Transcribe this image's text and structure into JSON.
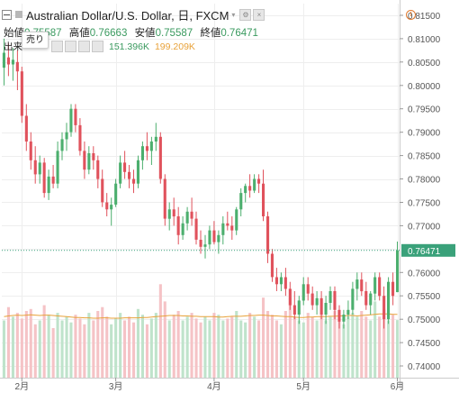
{
  "header": {
    "symbol_title": "Australian Dollar/U.S. Dollar, 日, FXCM",
    "ohlc": [
      {
        "label": "始値",
        "value": "0.75587"
      },
      {
        "label": "高値",
        "value": "0.76663"
      },
      {
        "label": "安値",
        "value": "0.75587"
      },
      {
        "label": "終値",
        "value": "0.76471"
      }
    ],
    "sell_label": "売り",
    "volume_label": "出来",
    "volume_values": [
      "151.396K",
      "199.209K"
    ],
    "alert_symbol": "!"
  },
  "colors": {
    "up": "#4caf6e",
    "down": "#e0525c",
    "up_volume": "#bfe3cb",
    "down_volume": "#f5c3c6",
    "volume_ma": "#e8a23a",
    "last_price": "#3aa17a",
    "grid": "#eeeeee",
    "axis": "#555555"
  },
  "chart_data": {
    "type": "candlestick",
    "title": "Australian Dollar/U.S. Dollar, 日, FXCM",
    "last_price": "0.76471",
    "ylim": [
      0.7375,
      0.8175
    ],
    "y_ticks": [
      "0.81500",
      "0.81000",
      "0.80500",
      "0.80000",
      "0.79500",
      "0.79000",
      "0.78500",
      "0.78000",
      "0.77500",
      "0.77000",
      "0.76500",
      "0.76000",
      "0.75500",
      "0.75000",
      "0.74500",
      "0.74000"
    ],
    "x_ticks": [
      {
        "label": "2月",
        "index": 4
      },
      {
        "label": "3月",
        "index": 25
      },
      {
        "label": "4月",
        "index": 47
      },
      {
        "label": "5月",
        "index": 67
      },
      {
        "label": "6月",
        "index": 88
      }
    ],
    "candles": [
      [
        0.8038,
        0.81,
        0.8,
        0.807
      ],
      [
        0.806,
        0.809,
        0.802,
        0.8045
      ],
      [
        0.8045,
        0.808,
        0.801,
        0.8055
      ],
      [
        0.805,
        0.8075,
        0.799,
        0.803
      ],
      [
        0.803,
        0.804,
        0.792,
        0.7935
      ],
      [
        0.7935,
        0.796,
        0.786,
        0.788
      ],
      [
        0.788,
        0.79,
        0.782,
        0.784
      ],
      [
        0.784,
        0.787,
        0.779,
        0.781
      ],
      [
        0.781,
        0.785,
        0.779,
        0.7835
      ],
      [
        0.7835,
        0.7845,
        0.776,
        0.777
      ],
      [
        0.777,
        0.782,
        0.7755,
        0.7805
      ],
      [
        0.7805,
        0.783,
        0.778,
        0.779
      ],
      [
        0.779,
        0.788,
        0.778,
        0.786
      ],
      [
        0.786,
        0.79,
        0.784,
        0.7885
      ],
      [
        0.7885,
        0.792,
        0.786,
        0.79
      ],
      [
        0.79,
        0.796,
        0.789,
        0.795
      ],
      [
        0.795,
        0.796,
        0.79,
        0.7915
      ],
      [
        0.7915,
        0.793,
        0.785,
        0.786
      ],
      [
        0.786,
        0.788,
        0.78,
        0.782
      ],
      [
        0.782,
        0.787,
        0.781,
        0.7855
      ],
      [
        0.7855,
        0.787,
        0.782,
        0.784
      ],
      [
        0.784,
        0.785,
        0.778,
        0.78
      ],
      [
        0.78,
        0.782,
        0.774,
        0.775
      ],
      [
        0.775,
        0.777,
        0.772,
        0.7735
      ],
      [
        0.7735,
        0.776,
        0.77,
        0.7745
      ],
      [
        0.7745,
        0.78,
        0.774,
        0.779
      ],
      [
        0.779,
        0.785,
        0.778,
        0.7835
      ],
      [
        0.7835,
        0.786,
        0.78,
        0.7815
      ],
      [
        0.7815,
        0.783,
        0.778,
        0.78
      ],
      [
        0.78,
        0.782,
        0.777,
        0.779
      ],
      [
        0.779,
        0.785,
        0.778,
        0.784
      ],
      [
        0.784,
        0.788,
        0.782,
        0.787
      ],
      [
        0.787,
        0.79,
        0.784,
        0.786
      ],
      [
        0.786,
        0.789,
        0.783,
        0.788
      ],
      [
        0.788,
        0.792,
        0.786,
        0.789
      ],
      [
        0.789,
        0.79,
        0.779,
        0.78
      ],
      [
        0.78,
        0.781,
        0.77,
        0.7715
      ],
      [
        0.7715,
        0.775,
        0.769,
        0.7735
      ],
      [
        0.7735,
        0.776,
        0.77,
        0.772
      ],
      [
        0.772,
        0.774,
        0.766,
        0.768
      ],
      [
        0.768,
        0.772,
        0.767,
        0.7705
      ],
      [
        0.7705,
        0.774,
        0.769,
        0.773
      ],
      [
        0.773,
        0.776,
        0.77,
        0.7715
      ],
      [
        0.7715,
        0.773,
        0.766,
        0.767
      ],
      [
        0.767,
        0.769,
        0.764,
        0.7655
      ],
      [
        0.7655,
        0.768,
        0.763,
        0.766
      ],
      [
        0.766,
        0.77,
        0.765,
        0.769
      ],
      [
        0.769,
        0.771,
        0.766,
        0.7665
      ],
      [
        0.7665,
        0.769,
        0.764,
        0.768
      ],
      [
        0.768,
        0.772,
        0.766,
        0.7705
      ],
      [
        0.7705,
        0.773,
        0.769,
        0.77
      ],
      [
        0.77,
        0.772,
        0.767,
        0.769
      ],
      [
        0.769,
        0.774,
        0.768,
        0.7735
      ],
      [
        0.7735,
        0.778,
        0.772,
        0.777
      ],
      [
        0.777,
        0.779,
        0.775,
        0.7785
      ],
      [
        0.7785,
        0.781,
        0.776,
        0.7775
      ],
      [
        0.7775,
        0.781,
        0.777,
        0.78
      ],
      [
        0.78,
        0.781,
        0.777,
        0.779
      ],
      [
        0.779,
        0.782,
        0.771,
        0.772
      ],
      [
        0.772,
        0.773,
        0.762,
        0.764
      ],
      [
        0.764,
        0.765,
        0.758,
        0.759
      ],
      [
        0.759,
        0.761,
        0.756,
        0.7575
      ],
      [
        0.7575,
        0.76,
        0.756,
        0.759
      ],
      [
        0.759,
        0.761,
        0.755,
        0.7565
      ],
      [
        0.7565,
        0.758,
        0.752,
        0.753
      ],
      [
        0.753,
        0.756,
        0.75,
        0.751
      ],
      [
        0.751,
        0.755,
        0.749,
        0.754
      ],
      [
        0.754,
        0.759,
        0.753,
        0.7575
      ],
      [
        0.7575,
        0.759,
        0.754,
        0.7555
      ],
      [
        0.7555,
        0.757,
        0.752,
        0.753
      ],
      [
        0.753,
        0.756,
        0.751,
        0.7545
      ],
      [
        0.7545,
        0.756,
        0.75,
        0.751
      ],
      [
        0.751,
        0.755,
        0.749,
        0.7535
      ],
      [
        0.7535,
        0.757,
        0.752,
        0.756
      ],
      [
        0.756,
        0.757,
        0.75,
        0.752
      ],
      [
        0.752,
        0.753,
        0.748,
        0.7495
      ],
      [
        0.7495,
        0.752,
        0.748,
        0.751
      ],
      [
        0.751,
        0.754,
        0.75,
        0.752
      ],
      [
        0.752,
        0.758,
        0.751,
        0.7565
      ],
      [
        0.7565,
        0.76,
        0.754,
        0.7585
      ],
      [
        0.7585,
        0.76,
        0.755,
        0.756
      ],
      [
        0.756,
        0.758,
        0.752,
        0.753
      ],
      [
        0.753,
        0.756,
        0.751,
        0.7555
      ],
      [
        0.7555,
        0.76,
        0.754,
        0.759
      ],
      [
        0.759,
        0.76,
        0.754,
        0.755
      ],
      [
        0.755,
        0.757,
        0.748,
        0.75
      ],
      [
        0.75,
        0.759,
        0.749,
        0.758
      ],
      [
        0.758,
        0.76,
        0.753,
        0.755
      ],
      [
        0.7558,
        0.7666,
        0.7558,
        0.7647
      ]
    ],
    "volume": [
      [
        150,
        0
      ],
      [
        185,
        1
      ],
      [
        160,
        0
      ],
      [
        170,
        1
      ],
      [
        155,
        1
      ],
      [
        175,
        1
      ],
      [
        180,
        1
      ],
      [
        140,
        1
      ],
      [
        150,
        0
      ],
      [
        190,
        1
      ],
      [
        165,
        0
      ],
      [
        130,
        1
      ],
      [
        170,
        0
      ],
      [
        150,
        0
      ],
      [
        160,
        0
      ],
      [
        145,
        0
      ],
      [
        165,
        1
      ],
      [
        155,
        1
      ],
      [
        140,
        1
      ],
      [
        170,
        0
      ],
      [
        150,
        1
      ],
      [
        175,
        1
      ],
      [
        185,
        1
      ],
      [
        160,
        1
      ],
      [
        140,
        0
      ],
      [
        155,
        0
      ],
      [
        170,
        0
      ],
      [
        150,
        1
      ],
      [
        160,
        1
      ],
      [
        145,
        1
      ],
      [
        180,
        0
      ],
      [
        165,
        0
      ],
      [
        140,
        1
      ],
      [
        155,
        0
      ],
      [
        170,
        0
      ],
      [
        245,
        1
      ],
      [
        200,
        1
      ],
      [
        150,
        0
      ],
      [
        165,
        1
      ],
      [
        175,
        1
      ],
      [
        150,
        0
      ],
      [
        160,
        0
      ],
      [
        170,
        1
      ],
      [
        155,
        1
      ],
      [
        145,
        1
      ],
      [
        160,
        0
      ],
      [
        150,
        0
      ],
      [
        170,
        1
      ],
      [
        165,
        0
      ],
      [
        150,
        0
      ],
      [
        155,
        1
      ],
      [
        160,
        1
      ],
      [
        175,
        0
      ],
      [
        150,
        0
      ],
      [
        145,
        0
      ],
      [
        170,
        1
      ],
      [
        160,
        0
      ],
      [
        150,
        1
      ],
      [
        210,
        1
      ],
      [
        175,
        1
      ],
      [
        165,
        1
      ],
      [
        150,
        1
      ],
      [
        140,
        0
      ],
      [
        175,
        1
      ],
      [
        210,
        1
      ],
      [
        160,
        1
      ],
      [
        150,
        0
      ],
      [
        145,
        0
      ],
      [
        170,
        1
      ],
      [
        160,
        1
      ],
      [
        150,
        0
      ],
      [
        165,
        1
      ],
      [
        150,
        0
      ],
      [
        160,
        0
      ],
      [
        175,
        1
      ],
      [
        150,
        1
      ],
      [
        140,
        0
      ],
      [
        160,
        0
      ],
      [
        170,
        0
      ],
      [
        160,
        0
      ],
      [
        175,
        1
      ],
      [
        160,
        1
      ],
      [
        150,
        0
      ],
      [
        200,
        0
      ],
      [
        160,
        1
      ],
      [
        180,
        1
      ],
      [
        150,
        0
      ],
      [
        165,
        1
      ],
      [
        151,
        0
      ]
    ],
    "volume_ma": [
      160,
      162,
      163,
      164,
      163,
      164,
      165,
      164,
      163,
      164,
      164,
      163,
      162,
      161,
      160,
      159,
      158,
      158,
      157,
      157,
      156,
      156,
      157,
      157,
      156,
      156,
      156,
      157,
      157,
      157,
      157,
      158,
      158,
      159,
      160,
      161,
      162,
      163,
      163,
      163,
      162,
      162,
      161,
      161,
      160,
      160,
      160,
      160,
      159,
      159,
      160,
      161,
      161,
      161,
      162,
      163,
      163,
      164,
      164,
      163,
      162,
      162,
      161,
      160,
      160,
      159,
      158,
      158,
      159,
      159,
      160,
      160,
      160,
      161,
      161,
      162,
      162,
      163,
      163,
      162,
      163,
      164,
      165,
      166,
      167,
      167,
      167,
      166,
      166
    ]
  }
}
